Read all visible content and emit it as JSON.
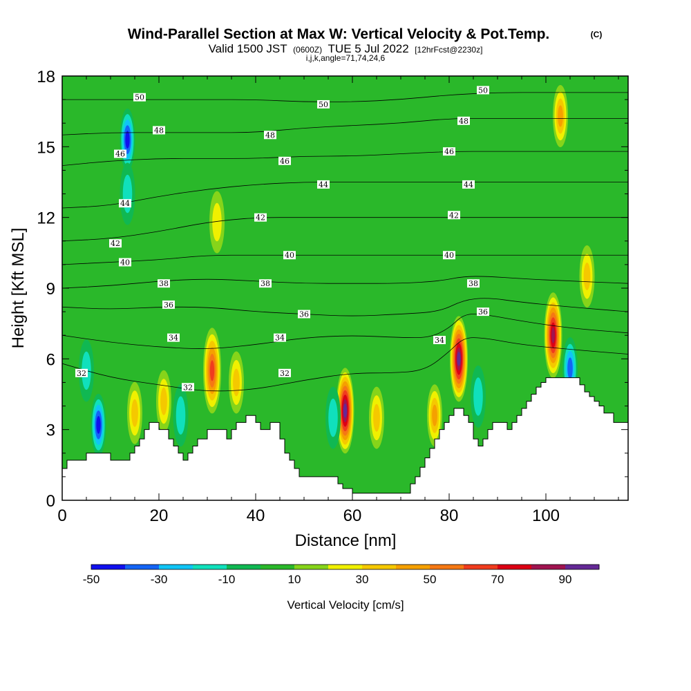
{
  "title": {
    "main": "Wind-Parallel Section at Max W: Vertical Velocity & Pot.Temp.",
    "copyright": "(C)",
    "subtitle_a": "Valid 1500 JST",
    "subtitle_b": "(0600Z)",
    "subtitle_c": "TUE 5 Jul 2022",
    "subtitle_d": "[12hrFcst@2230z]",
    "indices": "i,j,k,angle=71,74,24,6"
  },
  "chart_data": {
    "type": "heatmap",
    "xlabel": "Distance [nm]",
    "ylabel": "Height [Kft MSL]",
    "xlim": [
      0,
      117
    ],
    "ylim": [
      0,
      18
    ],
    "x_ticks": [
      0,
      20,
      40,
      60,
      80,
      100
    ],
    "y_ticks": [
      0,
      3,
      6,
      9,
      12,
      15,
      18
    ],
    "colorbar": {
      "label": "Vertical Velocity [cm/s]",
      "tick_values": [
        -50,
        -30,
        -10,
        10,
        30,
        50,
        70,
        90
      ],
      "range": [
        -50,
        100
      ],
      "bin_width": 10,
      "colors": [
        "#1010ee",
        "#1464f5",
        "#10c4f5",
        "#10e0bc",
        "#10b852",
        "#2ab82a",
        "#86d41a",
        "#f0f000",
        "#f5c800",
        "#f5a000",
        "#f57814",
        "#f03c1e",
        "#dc0014",
        "#a01450",
        "#642896"
      ]
    },
    "terrain_profile": {
      "x": [
        0,
        1,
        2,
        3,
        5,
        8,
        10,
        12,
        13,
        14,
        15,
        16,
        17,
        18,
        19,
        20,
        21,
        22,
        23,
        24,
        25,
        26,
        27,
        28,
        29,
        30,
        31,
        32,
        34,
        35,
        36,
        37,
        38,
        39,
        40,
        41,
        42,
        43,
        44,
        45,
        46,
        47,
        48,
        49,
        50,
        52,
        54,
        56,
        57,
        58,
        59,
        60,
        61,
        62,
        64,
        66,
        68,
        70,
        72,
        73,
        74,
        75,
        76,
        77,
        78,
        79,
        80,
        81,
        82,
        83,
        84,
        85,
        86,
        87,
        88,
        89,
        90,
        91,
        92,
        93,
        94,
        95,
        96,
        97,
        98,
        99,
        100,
        102,
        104,
        105,
        106,
        107,
        108,
        109,
        110,
        111,
        112,
        114,
        117
      ],
      "height": [
        1.35,
        1.7,
        1.7,
        1.7,
        2.0,
        2.0,
        1.7,
        1.7,
        1.7,
        2.0,
        2.3,
        2.6,
        3.0,
        3.3,
        3.3,
        3.0,
        3.0,
        2.6,
        2.3,
        2.0,
        1.7,
        2.0,
        2.3,
        2.6,
        2.6,
        3.0,
        3.0,
        3.0,
        2.6,
        3.0,
        3.3,
        3.3,
        3.6,
        3.6,
        3.3,
        3.0,
        3.0,
        3.3,
        3.3,
        2.6,
        2.0,
        1.7,
        1.35,
        1.0,
        1.0,
        1.0,
        1.0,
        1.0,
        0.7,
        0.5,
        0.5,
        0.3,
        0.3,
        0.3,
        0.3,
        0.3,
        0.3,
        0.3,
        0.7,
        1.0,
        1.4,
        1.8,
        2.2,
        2.6,
        3.0,
        3.3,
        3.6,
        3.9,
        3.9,
        3.6,
        3.3,
        2.6,
        2.3,
        2.6,
        3.0,
        3.3,
        3.3,
        3.3,
        3.0,
        3.3,
        3.6,
        3.9,
        4.2,
        4.5,
        4.8,
        5.0,
        5.2,
        5.2,
        5.2,
        5.2,
        5.2,
        4.9,
        4.6,
        4.4,
        4.2,
        4.0,
        3.7,
        3.3,
        3.3
      ]
    },
    "vertical_velocity_features": [
      {
        "x": 13.5,
        "height": 15.3,
        "value": -50
      },
      {
        "x": 13.5,
        "height": 13.0,
        "value": -20
      },
      {
        "x": 7.5,
        "height": 3.2,
        "value": -50
      },
      {
        "x": 5.0,
        "height": 5.5,
        "value": -20
      },
      {
        "x": 15.0,
        "height": 3.7,
        "value": 30
      },
      {
        "x": 21.0,
        "height": 4.2,
        "value": 30
      },
      {
        "x": 24.5,
        "height": 3.6,
        "value": -20
      },
      {
        "x": 31.0,
        "height": 5.5,
        "value": 60
      },
      {
        "x": 36.0,
        "height": 5.0,
        "value": 30
      },
      {
        "x": 32.0,
        "height": 11.8,
        "value": 20
      },
      {
        "x": 58.5,
        "height": 3.8,
        "value": 90
      },
      {
        "x": 56.0,
        "height": 3.5,
        "value": -20
      },
      {
        "x": 65.0,
        "height": 3.5,
        "value": 30
      },
      {
        "x": 77.0,
        "height": 3.6,
        "value": 40
      },
      {
        "x": 82.0,
        "height": 6.0,
        "value": 90
      },
      {
        "x": 86.0,
        "height": 4.4,
        "value": -20
      },
      {
        "x": 101.5,
        "height": 7.0,
        "value": 80
      },
      {
        "x": 103.0,
        "height": 16.3,
        "value": 40
      },
      {
        "x": 105.0,
        "height": 5.6,
        "value": -40
      },
      {
        "x": 108.5,
        "height": 9.5,
        "value": 30
      }
    ],
    "potential_temperature_contours": [
      {
        "label": "32",
        "points": [
          [
            0,
            5.8
          ],
          [
            10,
            5.2
          ],
          [
            20,
            4.9
          ],
          [
            30,
            4.6
          ],
          [
            40,
            4.7
          ],
          [
            50,
            5.1
          ],
          [
            60,
            5.4
          ],
          [
            68,
            5.4
          ],
          [
            75,
            5.5
          ],
          [
            80,
            6.3
          ],
          [
            83,
            6.9
          ],
          [
            87,
            6.9
          ],
          [
            95,
            6.6
          ],
          [
            105,
            6.4
          ],
          [
            117,
            6.2
          ]
        ],
        "labels_at": [
          [
            4,
            5.4
          ],
          [
            26,
            4.8
          ],
          [
            46,
            5.4
          ]
        ]
      },
      {
        "label": "34",
        "points": [
          [
            0,
            7.0
          ],
          [
            10,
            6.7
          ],
          [
            20,
            6.5
          ],
          [
            30,
            6.4
          ],
          [
            40,
            6.6
          ],
          [
            50,
            6.9
          ],
          [
            60,
            7.0
          ],
          [
            70,
            6.9
          ],
          [
            76,
            6.9
          ],
          [
            80,
            7.3
          ],
          [
            83,
            7.9
          ],
          [
            87,
            7.9
          ],
          [
            95,
            7.6
          ],
          [
            105,
            7.3
          ],
          [
            117,
            7.1
          ]
        ],
        "labels_at": [
          [
            23,
            6.9
          ],
          [
            45,
            6.9
          ],
          [
            78,
            6.8
          ]
        ]
      },
      {
        "label": "36",
        "points": [
          [
            0,
            8.2
          ],
          [
            10,
            8.1
          ],
          [
            20,
            8.2
          ],
          [
            30,
            8.2
          ],
          [
            40,
            8.0
          ],
          [
            50,
            7.9
          ],
          [
            60,
            7.8
          ],
          [
            70,
            7.9
          ],
          [
            78,
            8.0
          ],
          [
            83,
            8.5
          ],
          [
            88,
            8.6
          ],
          [
            95,
            8.4
          ],
          [
            105,
            8.2
          ],
          [
            117,
            8.0
          ]
        ],
        "labels_at": [
          [
            22,
            8.3
          ],
          [
            50,
            7.9
          ],
          [
            87,
            8.0
          ]
        ]
      },
      {
        "label": "38",
        "points": [
          [
            0,
            9.0
          ],
          [
            10,
            9.1
          ],
          [
            20,
            9.3
          ],
          [
            30,
            9.4
          ],
          [
            40,
            9.3
          ],
          [
            50,
            9.2
          ],
          [
            60,
            9.2
          ],
          [
            70,
            9.2
          ],
          [
            78,
            9.3
          ],
          [
            83,
            9.5
          ],
          [
            88,
            9.5
          ],
          [
            95,
            9.4
          ],
          [
            105,
            9.3
          ],
          [
            117,
            9.2
          ]
        ],
        "labels_at": [
          [
            21,
            9.2
          ],
          [
            42,
            9.2
          ],
          [
            85,
            9.2
          ]
        ]
      },
      {
        "label": "40",
        "points": [
          [
            0,
            10.0
          ],
          [
            10,
            10.1
          ],
          [
            20,
            10.2
          ],
          [
            30,
            10.4
          ],
          [
            40,
            10.4
          ],
          [
            50,
            10.4
          ],
          [
            60,
            10.4
          ],
          [
            70,
            10.4
          ],
          [
            80,
            10.4
          ],
          [
            90,
            10.4
          ],
          [
            100,
            10.4
          ],
          [
            110,
            10.4
          ],
          [
            117,
            10.4
          ]
        ],
        "labels_at": [
          [
            13,
            10.1
          ],
          [
            47,
            10.4
          ],
          [
            80,
            10.4
          ]
        ]
      },
      {
        "label": "42",
        "points": [
          [
            0,
            11.0
          ],
          [
            10,
            11.1
          ],
          [
            20,
            11.4
          ],
          [
            30,
            11.8
          ],
          [
            40,
            12.0
          ],
          [
            50,
            12.0
          ],
          [
            60,
            12.0
          ],
          [
            70,
            12.0
          ],
          [
            80,
            12.0
          ],
          [
            90,
            12.0
          ],
          [
            100,
            12.0
          ],
          [
            110,
            12.0
          ],
          [
            117,
            12.0
          ]
        ],
        "labels_at": [
          [
            11,
            10.9
          ],
          [
            41,
            12.0
          ],
          [
            81,
            12.1
          ]
        ]
      },
      {
        "label": "44",
        "points": [
          [
            0,
            12.4
          ],
          [
            10,
            12.5
          ],
          [
            20,
            12.9
          ],
          [
            30,
            13.2
          ],
          [
            40,
            13.4
          ],
          [
            50,
            13.5
          ],
          [
            60,
            13.5
          ],
          [
            70,
            13.5
          ],
          [
            80,
            13.5
          ],
          [
            90,
            13.5
          ],
          [
            100,
            13.5
          ],
          [
            110,
            13.5
          ],
          [
            117,
            13.5
          ]
        ],
        "labels_at": [
          [
            13,
            12.6
          ],
          [
            54,
            13.4
          ],
          [
            84,
            13.4
          ]
        ]
      },
      {
        "label": "46",
        "points": [
          [
            0,
            14.2
          ],
          [
            10,
            14.4
          ],
          [
            20,
            14.5
          ],
          [
            30,
            14.5
          ],
          [
            40,
            14.5
          ],
          [
            50,
            14.6
          ],
          [
            60,
            14.6
          ],
          [
            70,
            14.7
          ],
          [
            80,
            14.8
          ],
          [
            90,
            14.8
          ],
          [
            100,
            14.8
          ],
          [
            110,
            14.8
          ],
          [
            117,
            14.8
          ]
        ],
        "labels_at": [
          [
            12,
            14.7
          ],
          [
            46,
            14.4
          ],
          [
            80,
            14.8
          ]
        ]
      },
      {
        "label": "48",
        "points": [
          [
            0,
            15.5
          ],
          [
            10,
            15.6
          ],
          [
            20,
            15.6
          ],
          [
            30,
            15.6
          ],
          [
            40,
            15.6
          ],
          [
            50,
            15.8
          ],
          [
            60,
            15.9
          ],
          [
            70,
            16.0
          ],
          [
            80,
            16.2
          ],
          [
            90,
            16.2
          ],
          [
            100,
            16.2
          ],
          [
            110,
            16.2
          ],
          [
            117,
            16.2
          ]
        ],
        "labels_at": [
          [
            20,
            15.7
          ],
          [
            43,
            15.5
          ],
          [
            83,
            16.1
          ]
        ]
      },
      {
        "label": "50",
        "points": [
          [
            0,
            17.0
          ],
          [
            10,
            17.0
          ],
          [
            20,
            17.0
          ],
          [
            30,
            17.0
          ],
          [
            40,
            17.0
          ],
          [
            50,
            16.9
          ],
          [
            60,
            16.9
          ],
          [
            70,
            17.0
          ],
          [
            80,
            17.2
          ],
          [
            90,
            17.3
          ],
          [
            100,
            17.3
          ],
          [
            110,
            17.3
          ],
          [
            117,
            17.3
          ]
        ],
        "labels_at": [
          [
            16,
            17.1
          ],
          [
            54,
            16.8
          ],
          [
            87,
            17.4
          ]
        ]
      }
    ]
  }
}
